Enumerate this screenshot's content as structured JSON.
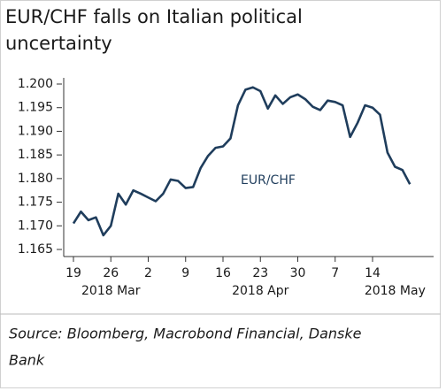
{
  "chart_data": {
    "type": "line",
    "title_lines": [
      "EUR/CHF falls on Italian political",
      "uncertainty"
    ],
    "categories": [
      "19",
      null,
      null,
      null,
      null,
      "26",
      null,
      null,
      null,
      null,
      "2",
      null,
      null,
      null,
      null,
      "9",
      null,
      null,
      null,
      null,
      "16",
      null,
      null,
      null,
      null,
      "23",
      null,
      null,
      null,
      null,
      "30",
      null,
      null,
      null,
      null,
      "7",
      null,
      null,
      null,
      null,
      "14",
      null,
      null,
      null,
      null,
      null
    ],
    "month_labels": [
      {
        "index": 5,
        "label": "2018 Mar"
      },
      {
        "index": 25,
        "label": "2018 Apr"
      },
      {
        "index": 43,
        "label": "2018 May"
      }
    ],
    "series": [
      {
        "name": "EUR/CHF",
        "color": "#1f3d5c",
        "values": [
          1.1705,
          1.173,
          1.1712,
          1.1718,
          1.168,
          1.17,
          1.1768,
          1.1745,
          1.1775,
          1.1768,
          1.176,
          1.1752,
          1.1768,
          1.1798,
          1.1795,
          1.178,
          1.1782,
          1.1822,
          1.1848,
          1.1865,
          1.1868,
          1.1885,
          1.1955,
          1.1988,
          1.1993,
          1.1985,
          1.1948,
          1.1976,
          1.1958,
          1.1972,
          1.1978,
          1.1968,
          1.1952,
          1.1945,
          1.1965,
          1.1962,
          1.1955,
          1.1888,
          1.1918,
          1.1955,
          1.195,
          1.1935,
          1.1855,
          1.1825,
          1.1818,
          1.1788
        ]
      }
    ],
    "ylim": [
      1.165,
      1.2
    ],
    "yticks": [
      {
        "value": 1.165,
        "label": "1.165"
      },
      {
        "value": 1.17,
        "label": "1.170"
      },
      {
        "value": 1.175,
        "label": "1.175"
      },
      {
        "value": 1.18,
        "label": "1.180"
      },
      {
        "value": 1.185,
        "label": "1.185"
      },
      {
        "value": 1.19,
        "label": "1.190"
      },
      {
        "value": 1.195,
        "label": "1.195"
      },
      {
        "value": 1.2,
        "label": "1.200"
      }
    ],
    "source_lines": [
      "Source: Bloomberg, Macrobond Financial, Danske",
      "Bank"
    ]
  }
}
